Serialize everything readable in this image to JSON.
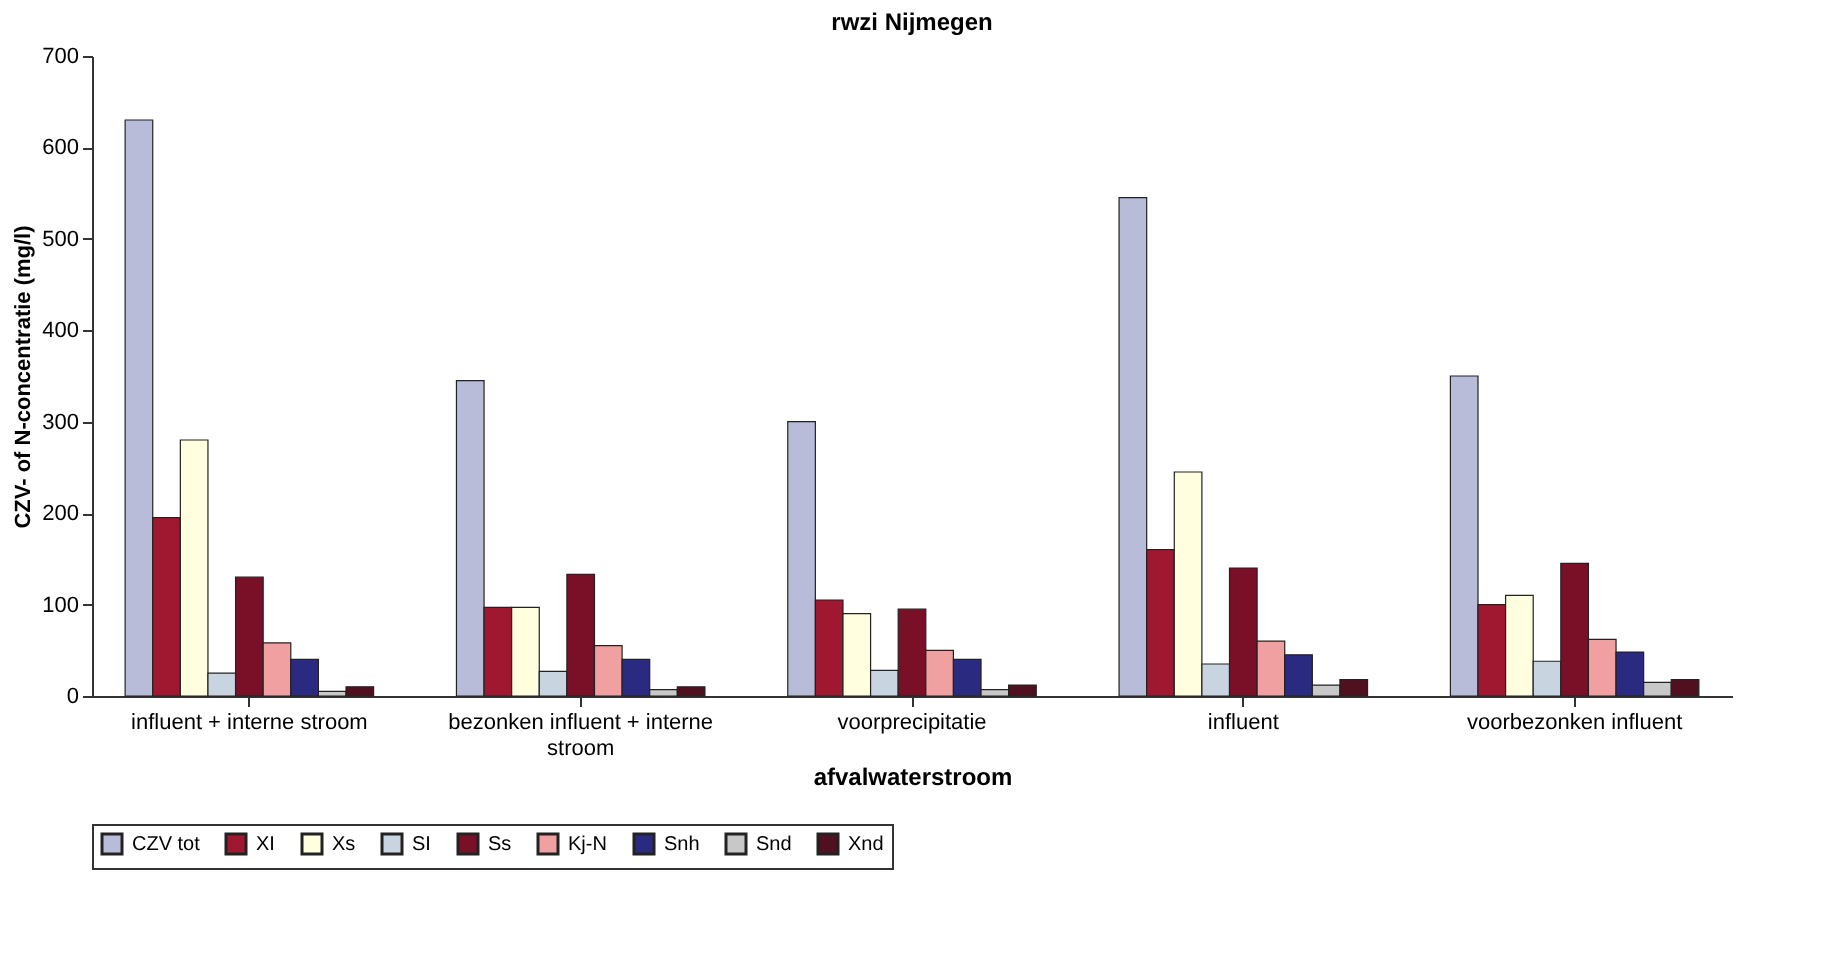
{
  "chart_data": {
    "type": "bar",
    "title": "rwzi Nijmegen",
    "xlabel": "afvalwaterstroom",
    "ylabel": "CZV- of N-concentratie (mg/l)",
    "categories": [
      "influent + interne stroom",
      "bezonken influent + interne stroom",
      "voorprecipitatie",
      "influent",
      "voorbezonken influent"
    ],
    "series": [
      {
        "name": "CZV tot",
        "color": "#b8bcd8",
        "values": [
          630,
          345,
          300,
          545,
          350
        ]
      },
      {
        "name": "XI",
        "color": "#a01830",
        "values": [
          195,
          97,
          105,
          160,
          100
        ]
      },
      {
        "name": "Xs",
        "color": "#ffffe0",
        "values": [
          280,
          97,
          90,
          245,
          110
        ]
      },
      {
        "name": "SI",
        "color": "#c8d4e0",
        "values": [
          25,
          27,
          28,
          35,
          38
        ]
      },
      {
        "name": "Ss",
        "color": "#7a1028",
        "values": [
          130,
          133,
          95,
          140,
          145
        ]
      },
      {
        "name": "Kj-N",
        "color": "#f0a0a0",
        "values": [
          58,
          55,
          50,
          60,
          62
        ]
      },
      {
        "name": "Snh",
        "color": "#2a2a80",
        "values": [
          40,
          40,
          40,
          45,
          48
        ]
      },
      {
        "name": "Snd",
        "color": "#c8c8c8",
        "values": [
          5,
          7,
          7,
          12,
          15
        ]
      },
      {
        "name": "Xnd",
        "color": "#501020",
        "values": [
          10,
          10,
          12,
          18,
          18
        ]
      }
    ],
    "ylim": [
      0,
      700
    ],
    "yticks": [
      0,
      100,
      200,
      300,
      400,
      500,
      600,
      700
    ],
    "grid": false,
    "legend": "bottom"
  }
}
